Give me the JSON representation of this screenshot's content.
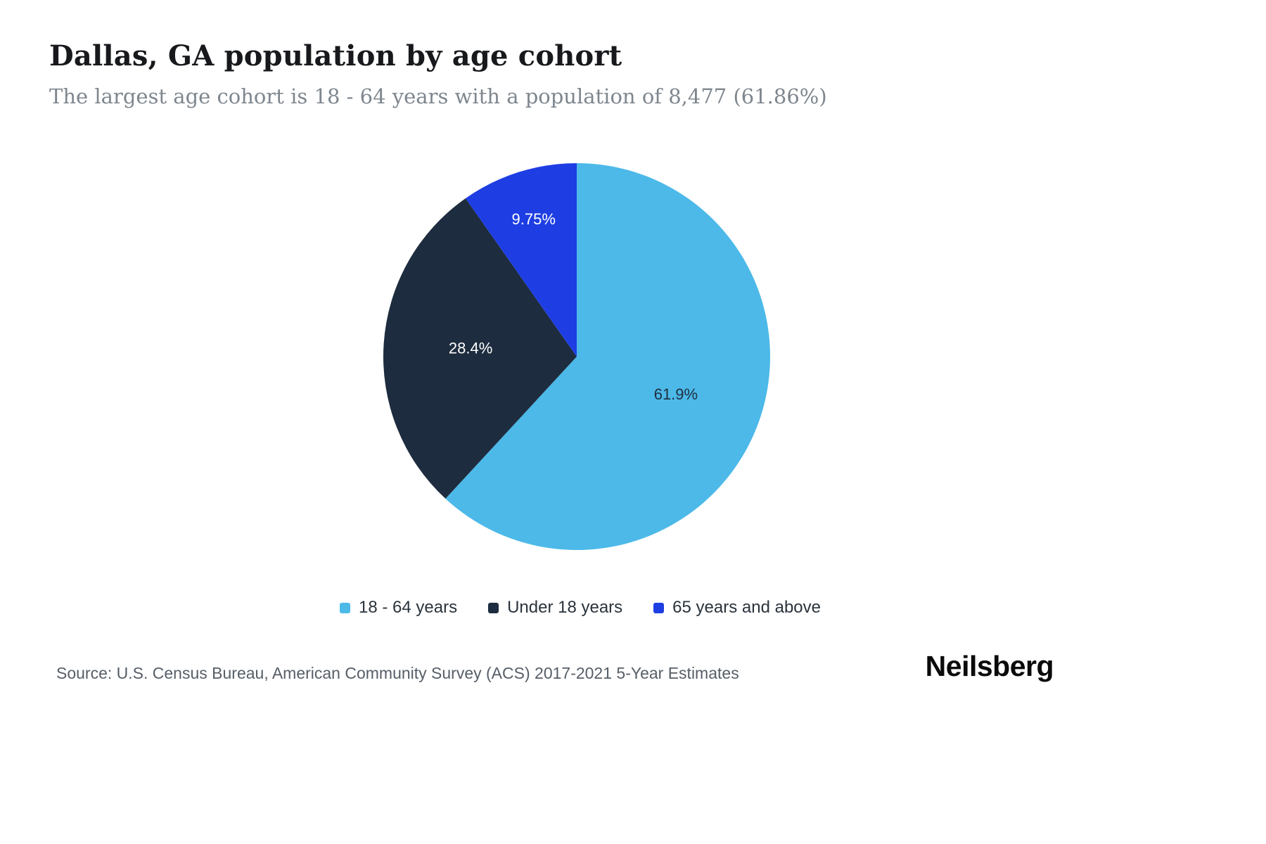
{
  "page": {
    "title": "Dallas, GA population by age cohort",
    "subtitle": "The largest age cohort is 18 - 64 years with a population of 8,477 (61.86%)",
    "source": "Source: U.S. Census Bureau, American Community Survey (ACS) 2017-2021 5-Year Estimates",
    "brand": "Neilsberg"
  },
  "chart_data": {
    "type": "pie",
    "title": "Dallas, GA population by age cohort",
    "labels": [
      "18 - 64 years",
      "Under 18 years",
      "65 years and above"
    ],
    "values": [
      61.9,
      28.4,
      9.75
    ],
    "value_labels": [
      "61.9%",
      "28.4%",
      "9.75%"
    ],
    "colors": [
      "#4CB9E9",
      "#1D2C3E",
      "#1E3EE3"
    ],
    "label_text_colors": [
      "#1f2e3f",
      "#ffffff",
      "#ffffff"
    ],
    "start_angle_deg": 0,
    "direction": "clockwise",
    "legend_position": "bottom",
    "annotation": {
      "largest_cohort": "18 - 64 years",
      "population": "8,477",
      "share": "61.86%"
    }
  }
}
